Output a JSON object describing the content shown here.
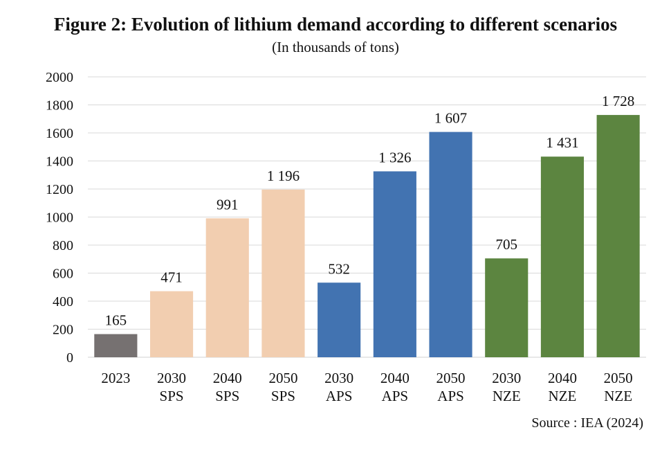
{
  "title": "Figure 2: Evolution of lithium demand according to different scenarios",
  "subtitle": "(In thousands of tons)",
  "source": "Source : IEA (2024)",
  "colors": {
    "2023": "#767171",
    "SPS": "#F2CEB0",
    "APS": "#4273B1",
    "NZE": "#5C8540",
    "grid": "#d9d9d9"
  },
  "chart_data": {
    "type": "bar",
    "categories": [
      [
        "2023"
      ],
      [
        "2030",
        "SPS"
      ],
      [
        "2040",
        "SPS"
      ],
      [
        "2050",
        "SPS"
      ],
      [
        "2030",
        "APS"
      ],
      [
        "2040",
        "APS"
      ],
      [
        "2050",
        "APS"
      ],
      [
        "2030",
        "NZE"
      ],
      [
        "2040",
        "NZE"
      ],
      [
        "2050",
        "NZE"
      ]
    ],
    "values": [
      165,
      471,
      991,
      1196,
      532,
      1326,
      1607,
      705,
      1431,
      1728
    ],
    "data_labels": [
      "165",
      "471",
      "991",
      "1 196",
      "532",
      "1 326",
      "1 607",
      "705",
      "1 431",
      "1 728"
    ],
    "groups": [
      "2023",
      "SPS",
      "SPS",
      "SPS",
      "APS",
      "APS",
      "APS",
      "NZE",
      "NZE",
      "NZE"
    ],
    "title": "Figure 2: Evolution of lithium demand according to different scenarios",
    "subtitle": "(In thousands of tons)",
    "xlabel": "",
    "ylabel": "",
    "ylim": [
      0,
      2000
    ],
    "yticks": [
      0,
      200,
      400,
      600,
      800,
      1000,
      1200,
      1400,
      1600,
      1800,
      2000
    ],
    "grid": true,
    "legend": "none"
  }
}
